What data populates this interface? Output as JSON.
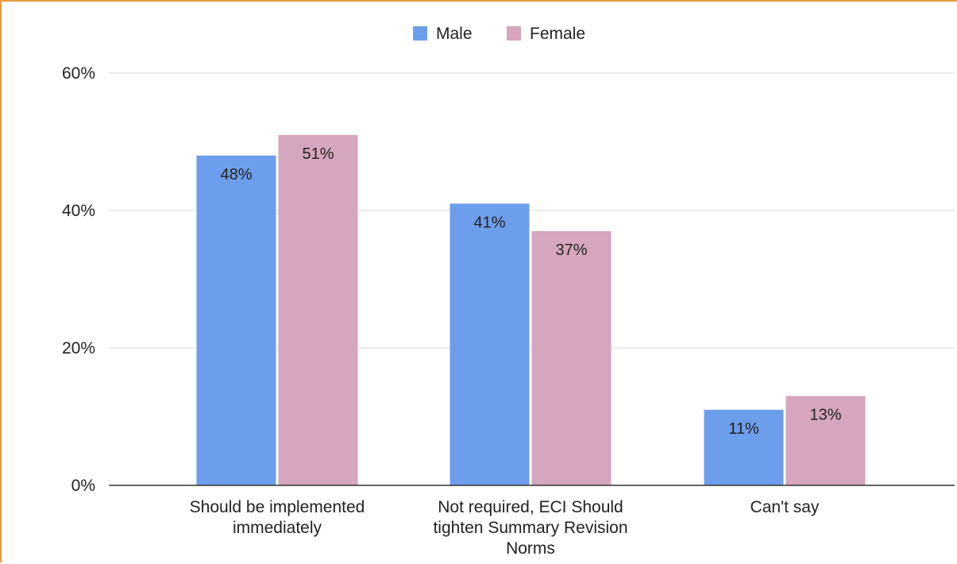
{
  "chart_data": {
    "type": "bar",
    "categories": [
      [
        "Should be implemented",
        "immediately"
      ],
      [
        "Not required, ECI Should",
        "tighten Summary Revision",
        "Norms"
      ],
      [
        "Can't say"
      ]
    ],
    "series": [
      {
        "name": "Male",
        "color": "#6d9eeb",
        "values": [
          48,
          41,
          11
        ],
        "labels": [
          "48%",
          "41%",
          "11%"
        ]
      },
      {
        "name": "Female",
        "color": "#d5a6bd",
        "values": [
          51,
          37,
          13
        ],
        "labels": [
          "51%",
          "37%",
          "13%"
        ]
      }
    ],
    "ylim": [
      0,
      60
    ],
    "yticks": [
      0,
      20,
      40,
      60
    ],
    "ytick_labels": [
      "0%",
      "20%",
      "40%",
      "60%"
    ],
    "grid": true,
    "legend_position": "top-center",
    "title": "",
    "xlabel": "",
    "ylabel": ""
  }
}
